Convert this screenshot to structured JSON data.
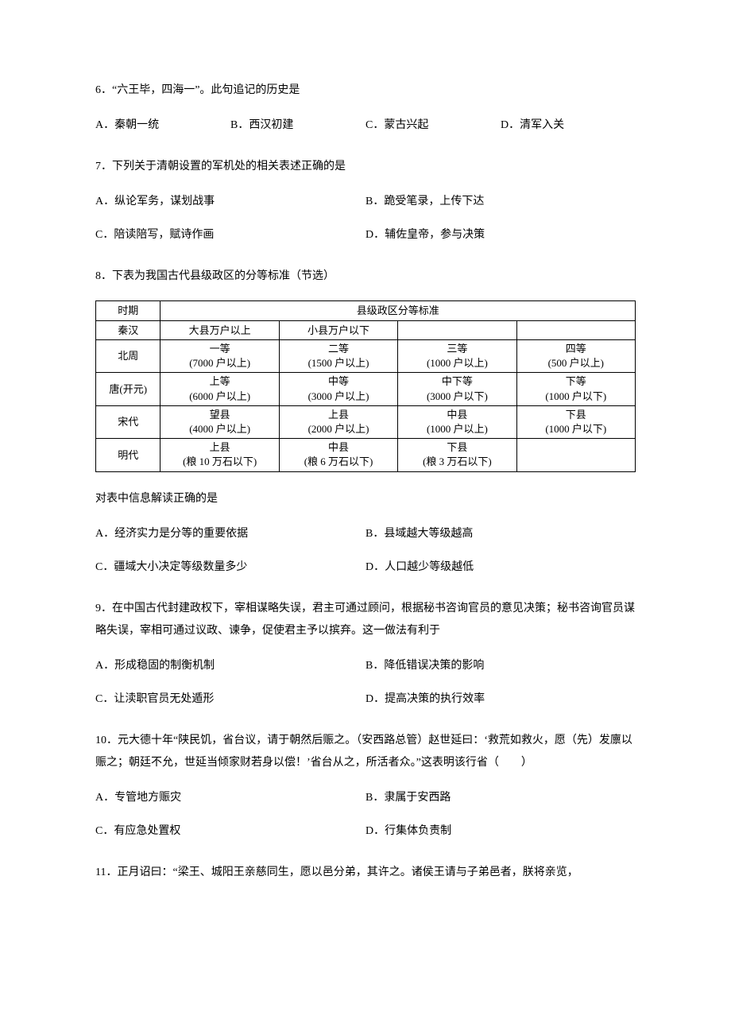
{
  "questions": {
    "q6": {
      "text": "6．“六王毕，四海一”。此句追记的历史是",
      "optA": "A．秦朝一统",
      "optB": "B．西汉初建",
      "optC": "C．蒙古兴起",
      "optD": "D．清军入关"
    },
    "q7": {
      "text": "7．下列关于清朝设置的军机处的相关表述正确的是",
      "optA": "A．纵论军务，谋划战事",
      "optB": "B．跪受笔录，上传下达",
      "optC": "C．陪读陪写，赋诗作画",
      "optD": "D．辅佐皇帝，参与决策"
    },
    "q8": {
      "text": "8．下表为我国古代县级政区的分等标准（节选）",
      "followup": "对表中信息解读正确的是",
      "optA": "A．经济实力是分等的重要依据",
      "optB": "B．县域越大等级越高",
      "optC": "C．疆域大小决定等级数量多少",
      "optD": "D．人口越少等级越低"
    },
    "q9": {
      "text": "9．在中国古代封建政权下，宰相谋略失误，君主可通过顾问，根据秘书咨询官员的意见决策；秘书咨询官员谋略失误，宰相可通过议政、谏争，促使君主予以摈弃。这一做法有利于",
      "optA": "A．形成稳固的制衡机制",
      "optB": "B．降低错误决策的影响",
      "optC": "C．让渎职官员无处遁形",
      "optD": "D．提高决策的执行效率"
    },
    "q10": {
      "text": "10．元大德十年“陕民饥，省台议，请于朝然后赈之。（安西路总管）赵世延曰：‘救荒如救火，愿（先）发廪以赈之；朝廷不允，世延当倾家财若身以偿！’省台从之，所活者众。”这表明该行省（　　）",
      "optA": "A．专管地方赈灾",
      "optB": "B．隶属于安西路",
      "optC": "C．有应急处置权",
      "optD": "D．行集体负责制"
    },
    "q11": {
      "text": "11．正月诏曰：“梁王、城阳王亲慈同生，愿以邑分弟，其许之。诸侯王请与子弟邑者，朕将亲览，"
    }
  },
  "table": {
    "header": {
      "period": "时期",
      "standard": "县级政区分等标准"
    },
    "rows": [
      {
        "period": "秦汉",
        "cells": [
          "大县万户以上",
          "小县万户以下",
          "",
          ""
        ],
        "cellsShown": 2
      },
      {
        "period": "北周",
        "cells": [
          {
            "l1": "一等",
            "l2": "(7000 户以上)"
          },
          {
            "l1": "二等",
            "l2": "(1500 户以上)"
          },
          {
            "l1": "三等",
            "l2": "(1000 户以上)"
          },
          {
            "l1": "四等",
            "l2": "(500 户以上)"
          }
        ]
      },
      {
        "period": "唐(开元)",
        "cells": [
          {
            "l1": "上等",
            "l2": "(6000 户以上)"
          },
          {
            "l1": "中等",
            "l2": "(3000 户以上)"
          },
          {
            "l1": "中下等",
            "l2": "(3000 户以下)"
          },
          {
            "l1": "下等",
            "l2": "(1000 户以下)"
          }
        ]
      },
      {
        "period": "宋代",
        "cells": [
          {
            "l1": "望县",
            "l2": "(4000 户以上)"
          },
          {
            "l1": "上县",
            "l2": "(2000 户以上)"
          },
          {
            "l1": "中县",
            "l2": "(1000 户以上)"
          },
          {
            "l1": "下县",
            "l2": "(1000 户以下)"
          }
        ]
      },
      {
        "period": "明代",
        "cells": [
          {
            "l1": "上县",
            "l2": "(粮 10 万石以下)"
          },
          {
            "l1": "中县",
            "l2": "(粮 6 万石以下)"
          },
          {
            "l1": "下县",
            "l2": "(粮 3 万石以下)"
          },
          {
            "l1": "",
            "l2": ""
          }
        ]
      }
    ]
  },
  "style": {
    "backgroundColor": "#ffffff",
    "textColor": "#000000",
    "borderColor": "#000000",
    "fontSize": 14,
    "tableFontSize": 13
  }
}
